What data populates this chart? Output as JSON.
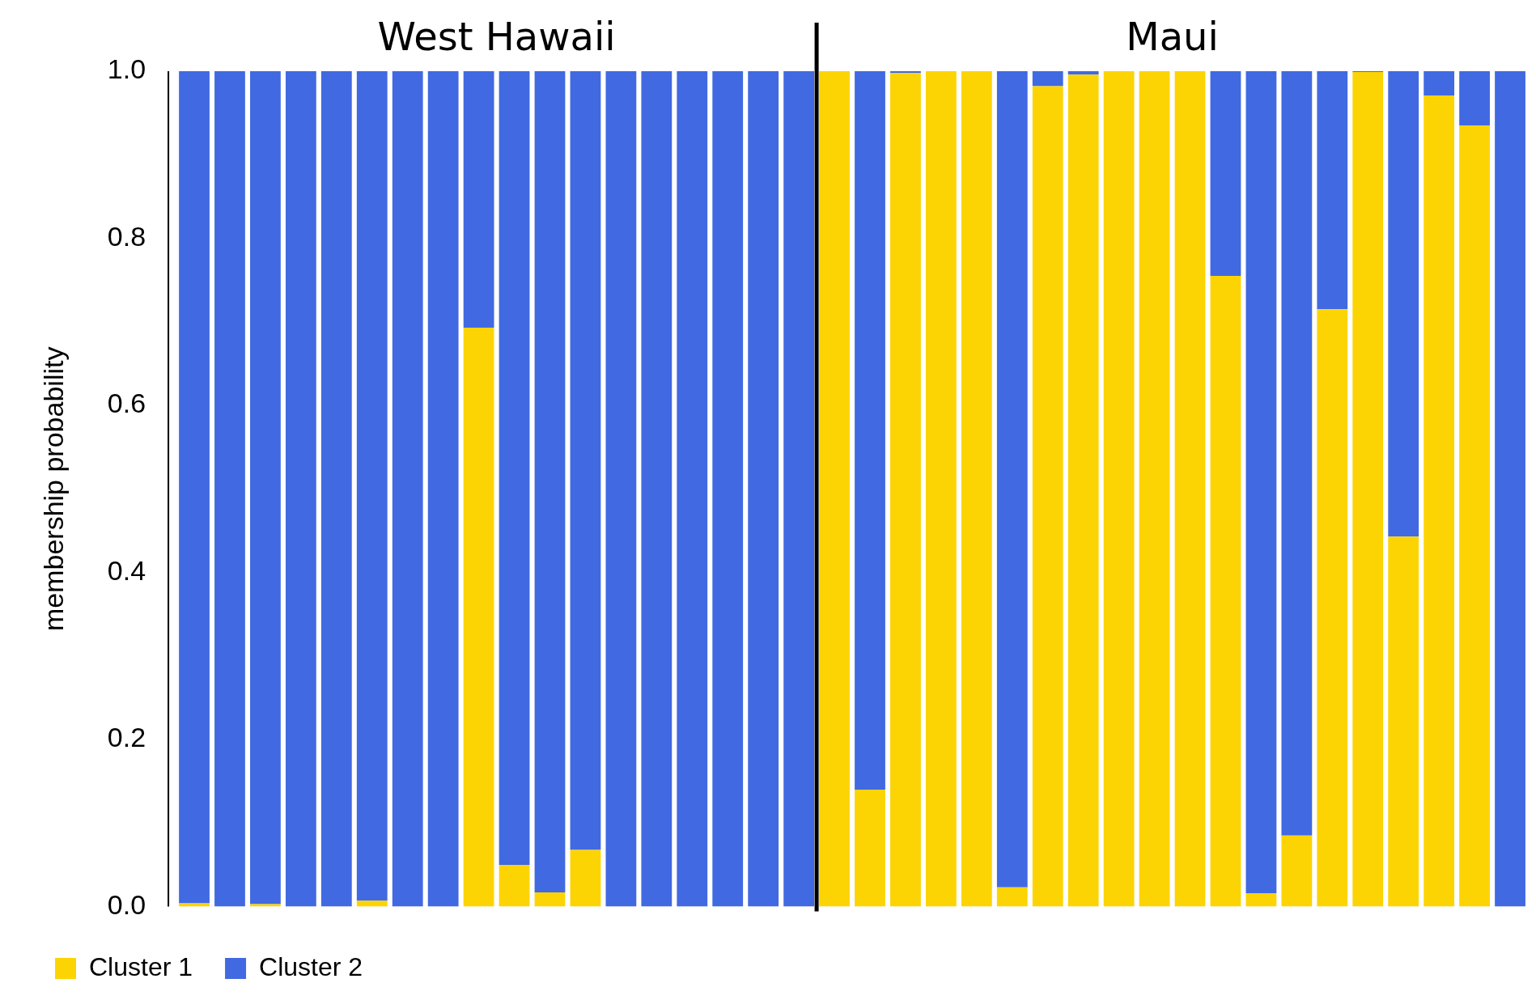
{
  "chart_data": {
    "type": "bar",
    "ylabel": "membership probability",
    "stacked": true,
    "legend": "bottom left",
    "grid": false,
    "categories": [
      null,
      null,
      null,
      null,
      null,
      null,
      null,
      null,
      null,
      null,
      null,
      null,
      null,
      null,
      null,
      null,
      null,
      null,
      null,
      null,
      null,
      null,
      null,
      null,
      null,
      null,
      null,
      null,
      null,
      null,
      null,
      null,
      null,
      null,
      null,
      null,
      null,
      null
    ],
    "ylim": [
      0,
      1
    ],
    "yticks": [
      {
        "value": 0,
        "label": "0.0"
      },
      {
        "value": 0.2,
        "label": "0.2"
      },
      {
        "value": 0.4,
        "label": "0.4"
      },
      {
        "value": 0.6,
        "label": "0.6"
      },
      {
        "value": 0.8,
        "label": "0.8"
      },
      {
        "value": 1,
        "label": "1.0"
      }
    ],
    "annotations": [
      "West Hawaii",
      "Maui"
    ],
    "series": [
      {
        "name": "Cluster 1",
        "color": "#fcd403",
        "values": [
          0.004,
          0,
          0.003,
          0,
          0,
          0.007,
          0,
          0,
          0.693,
          0.05,
          0.017,
          0.068,
          0,
          0,
          0,
          0,
          0,
          0,
          1,
          0.14,
          0.998,
          1,
          1,
          0.023,
          0.982,
          0.996,
          1,
          1,
          1,
          0.755,
          0.016,
          0.085,
          0.715,
          0.999,
          0.443,
          0.971,
          0.935,
          0
        ]
      },
      {
        "name": "Cluster 2",
        "color": "#4169e1",
        "values": [
          0.996,
          1,
          0.997,
          1,
          1,
          0.993,
          1,
          1,
          0.307,
          0.95,
          0.983,
          0.932,
          1,
          1,
          1,
          1,
          1,
          1,
          0,
          0.86,
          0.002,
          0,
          0,
          0.977,
          0.018,
          0.004,
          0,
          0,
          0,
          0.245,
          0.984,
          0.915,
          0.285,
          0.001,
          0.557,
          0.029,
          0.065,
          1
        ]
      }
    ]
  }
}
